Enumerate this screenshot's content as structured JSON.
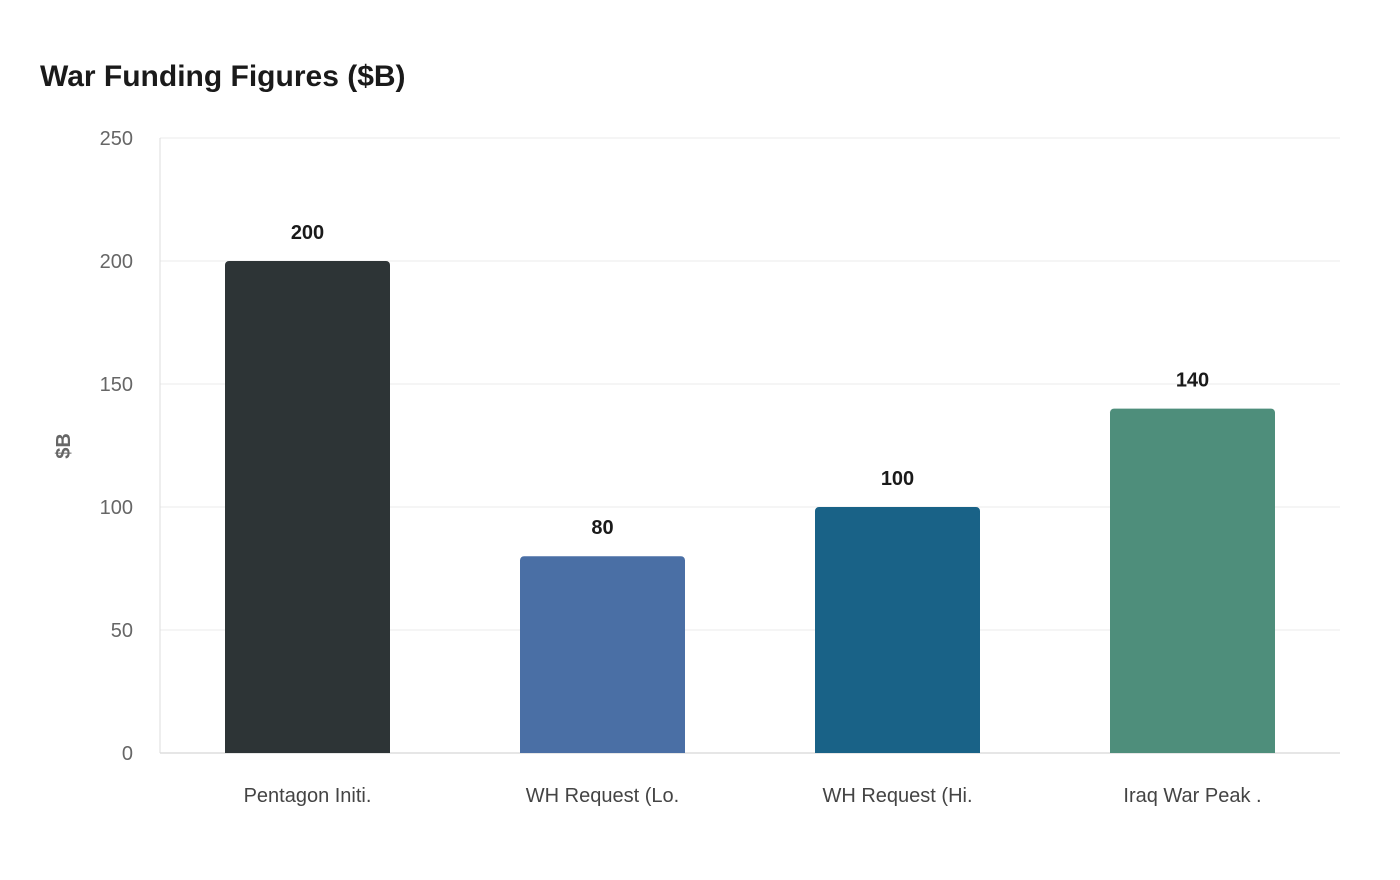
{
  "chart_data": {
    "type": "bar",
    "title": "War Funding Figures ($B)",
    "xlabel": "",
    "ylabel": "$B",
    "categories": [
      "Pentagon Initi.",
      "WH Request (Lo.",
      "WH Request (Hi.",
      "Iraq War Peak ."
    ],
    "values": [
      200,
      80,
      100,
      140
    ],
    "colors": [
      "#2d3436",
      "#4a6fa5",
      "#196287",
      "#4e8e7b"
    ],
    "ylim": [
      0,
      250
    ],
    "yticks": [
      0,
      50,
      100,
      150,
      200,
      250
    ],
    "grid": true,
    "legend": "none"
  }
}
